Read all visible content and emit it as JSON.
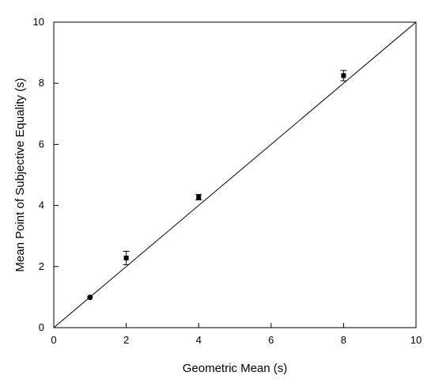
{
  "chart_data": {
    "type": "scatter",
    "title": "",
    "xlabel": "Geometric Mean (s)",
    "ylabel": "Mean Point of Subjective Equality (s)",
    "xlim": [
      0,
      10
    ],
    "ylim": [
      0,
      10
    ],
    "x_ticks": [
      "0",
      "2",
      "4",
      "6",
      "8",
      "10"
    ],
    "y_ticks": [
      "0",
      "2",
      "4",
      "6",
      "8",
      "10"
    ],
    "grid": false,
    "legend": "none",
    "reference_line": {
      "x": [
        0,
        10
      ],
      "y": [
        0,
        10
      ]
    },
    "series": [
      {
        "points": [
          {
            "x": 1,
            "y": 0.99,
            "err": 0.04
          },
          {
            "x": 2,
            "y": 2.28,
            "err": 0.22
          },
          {
            "x": 4,
            "y": 4.27,
            "err": 0.09
          },
          {
            "x": 8,
            "y": 8.25,
            "err": 0.17
          }
        ]
      }
    ]
  }
}
